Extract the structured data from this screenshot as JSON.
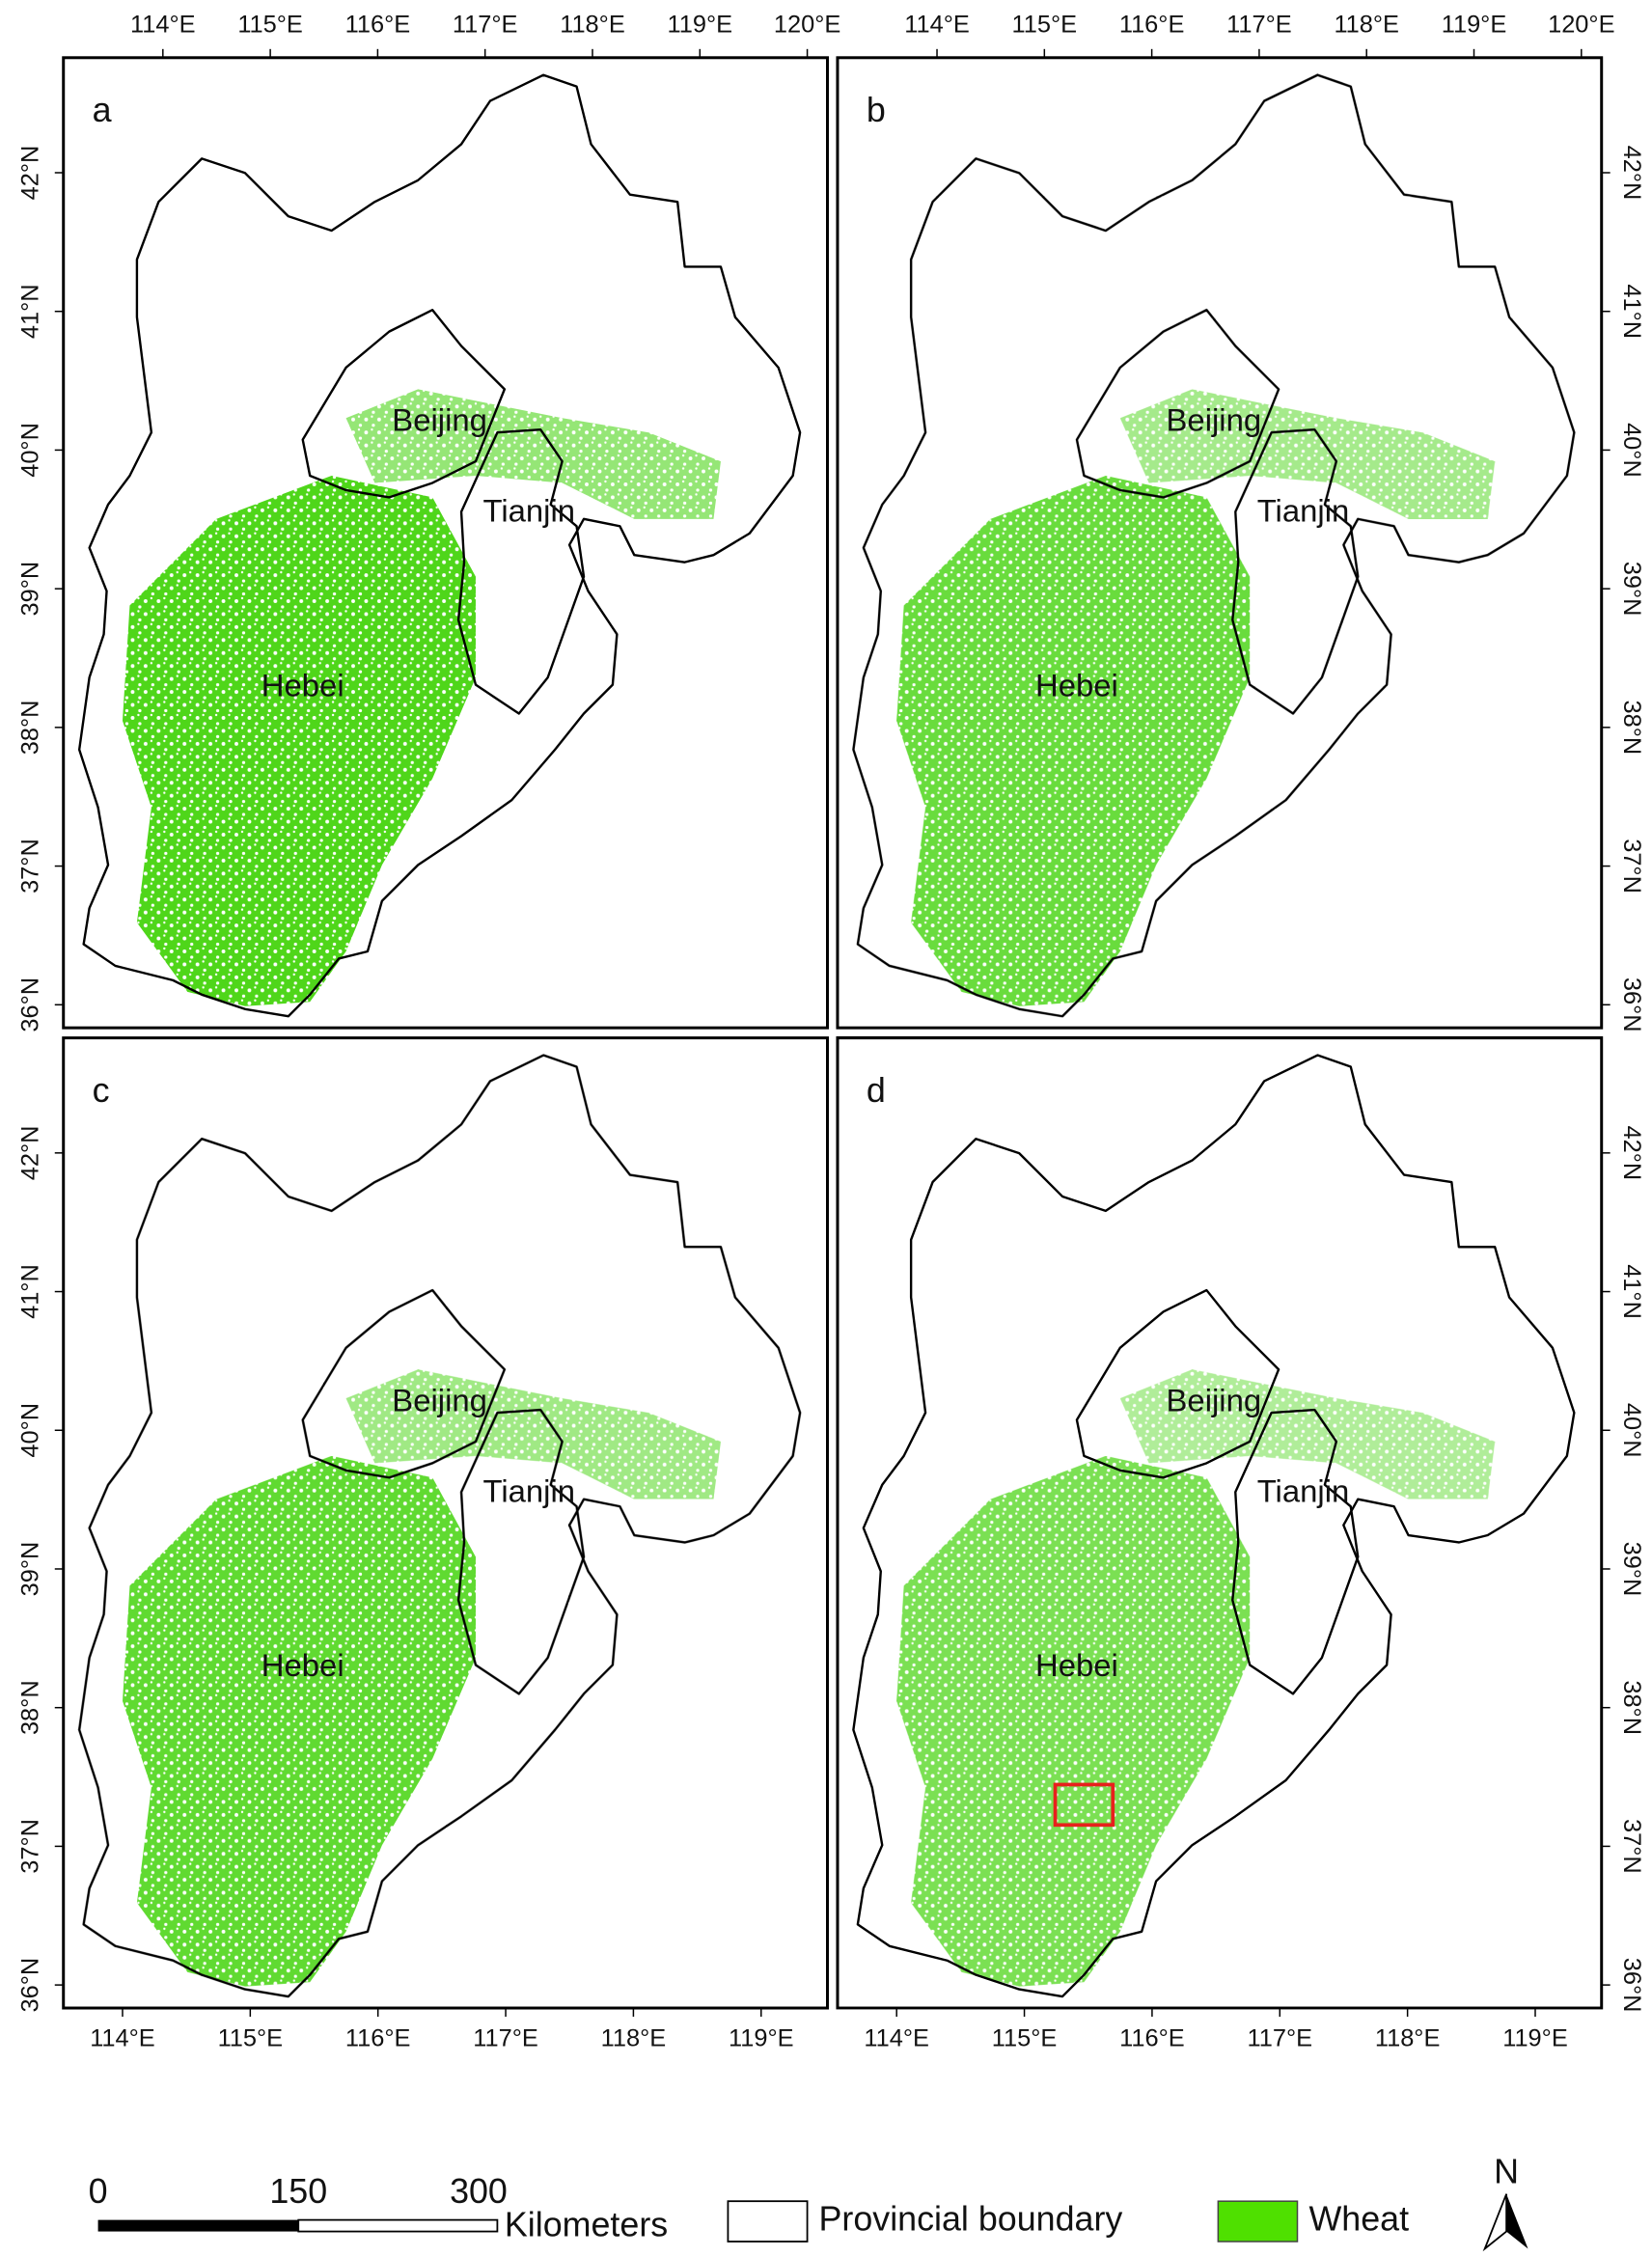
{
  "panels": [
    {
      "letter": "a",
      "top_ticks": [
        "114°E",
        "115°E",
        "116°E",
        "117°E",
        "118°E",
        "119°E",
        "120°E"
      ],
      "left_ticks": [
        "36°N",
        "37°N",
        "38°N",
        "39°N",
        "40°N",
        "41°N",
        "42°N"
      ],
      "labels": [
        "Beijing",
        "Tianjin",
        "Hebei"
      ]
    },
    {
      "letter": "b",
      "top_ticks": [
        "114°E",
        "115°E",
        "116°E",
        "117°E",
        "118°E",
        "119°E",
        "120°E"
      ],
      "right_ticks": [
        "36°N",
        "37°N",
        "38°N",
        "39°N",
        "40°N",
        "41°N",
        "42°N"
      ],
      "labels": [
        "Beijing",
        "Tianjin",
        "Hebei"
      ]
    },
    {
      "letter": "c",
      "bottom_ticks": [
        "114°E",
        "115°E",
        "116°E",
        "117°E",
        "118°E",
        "119°E"
      ],
      "left_ticks": [
        "36°N",
        "37°N",
        "38°N",
        "39°N",
        "40°N",
        "41°N",
        "42°N"
      ],
      "labels": [
        "Beijing",
        "Tianjin",
        "Hebei"
      ]
    },
    {
      "letter": "d",
      "bottom_ticks": [
        "114°E",
        "115°E",
        "116°E",
        "117°E",
        "118°E",
        "119°E"
      ],
      "right_ticks": [
        "36°N",
        "37°N",
        "38°N",
        "39°N",
        "40°N",
        "41°N",
        "42°N"
      ],
      "labels": [
        "Beijing",
        "Tianjin",
        "Hebei"
      ]
    }
  ],
  "legend": {
    "scale_bar": [
      "0",
      "150",
      "300"
    ],
    "unit": "Kilometers",
    "items": [
      "Provincial boundary",
      "Wheat"
    ],
    "north": "N"
  }
}
